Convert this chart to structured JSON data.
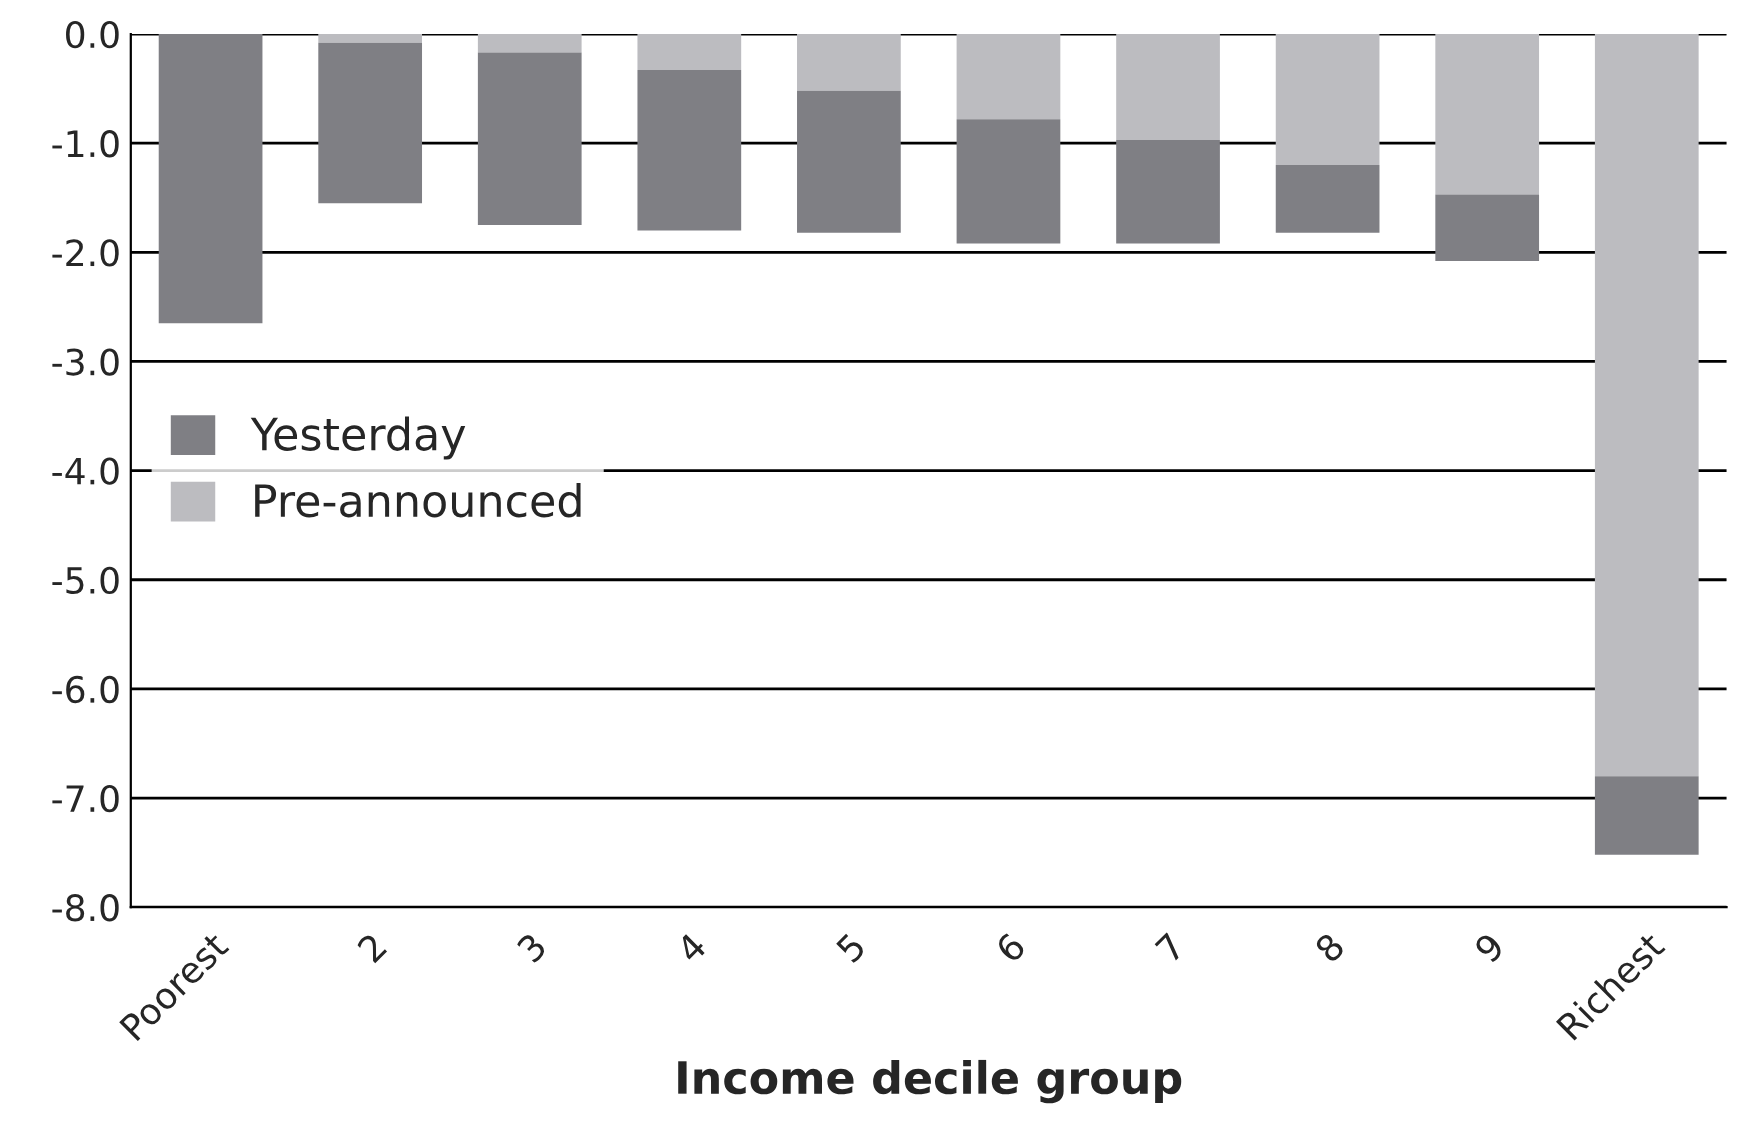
{
  "chart_data": {
    "type": "bar",
    "xlabel": "Income decile group",
    "categories": [
      "Poorest",
      "2",
      "3",
      "4",
      "5",
      "6",
      "7",
      "8",
      "9",
      "Richest"
    ],
    "stacked": true,
    "series": [
      {
        "name": "Pre-announced",
        "color": "#bcbcc0",
        "values": [
          0,
          -0.08,
          -0.17,
          -0.33,
          -0.52,
          -0.78,
          -0.97,
          -1.2,
          -1.47,
          -6.8
        ]
      },
      {
        "name": "Yesterday",
        "color": "#7f7f84",
        "values": [
          -2.65,
          -1.47,
          -1.58,
          -1.47,
          -1.3,
          -1.14,
          -0.95,
          -0.62,
          -0.61,
          -0.72
        ]
      }
    ],
    "ylim": [
      -8,
      0
    ],
    "yticks": [
      {
        "value": 0,
        "label": "0.0"
      },
      {
        "value": -1,
        "label": "-1.0"
      },
      {
        "value": -2,
        "label": "-2.0"
      },
      {
        "value": -3,
        "label": "-3.0"
      },
      {
        "value": -4,
        "label": "-4.0"
      },
      {
        "value": -5,
        "label": "-5.0"
      },
      {
        "value": -6,
        "label": "-6.0"
      },
      {
        "value": -7,
        "label": "-7.0"
      },
      {
        "value": -8,
        "label": "-8.0"
      }
    ],
    "grid": "y",
    "legend": "left"
  }
}
